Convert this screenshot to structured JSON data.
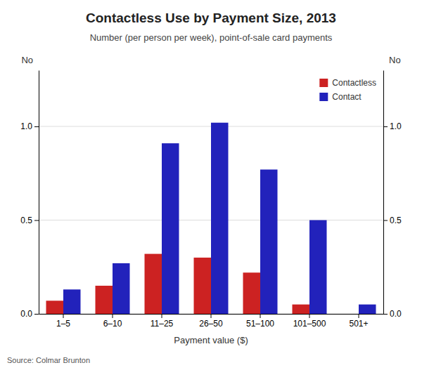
{
  "chart_data": {
    "type": "bar",
    "title": "Contactless Use by Payment Size, 2013",
    "subtitle": "Number (per person per week), point-of-sale card payments",
    "xlabel": "Payment value ($)",
    "ylabel": "No",
    "y2label": "No",
    "annotations": [
      "Source: Colmar Brunton"
    ],
    "categories": [
      "1–5",
      "6–10",
      "11–25",
      "26–50",
      "51–100",
      "101–500",
      "501+"
    ],
    "series": [
      {
        "name": "Contactless",
        "color": "#cc2222",
        "values": [
          0.07,
          0.15,
          0.32,
          0.3,
          0.22,
          0.05,
          0.0
        ]
      },
      {
        "name": "Contact",
        "color": "#2222bb",
        "values": [
          0.13,
          0.27,
          0.91,
          1.02,
          0.77,
          0.5,
          0.05
        ]
      }
    ],
    "ylim": [
      0.0,
      1.3
    ],
    "yticks": [
      {
        "value": 0,
        "label": "0.0"
      },
      0.5,
      {
        "value": 1,
        "label": "1.0"
      }
    ],
    "y2lim": [
      0.0,
      1.3
    ],
    "y2ticks": [
      {
        "value": 0,
        "label": "0.0"
      },
      0.5,
      {
        "value": 1,
        "label": "1.0"
      }
    ],
    "grid": true,
    "legend": "upper right"
  }
}
